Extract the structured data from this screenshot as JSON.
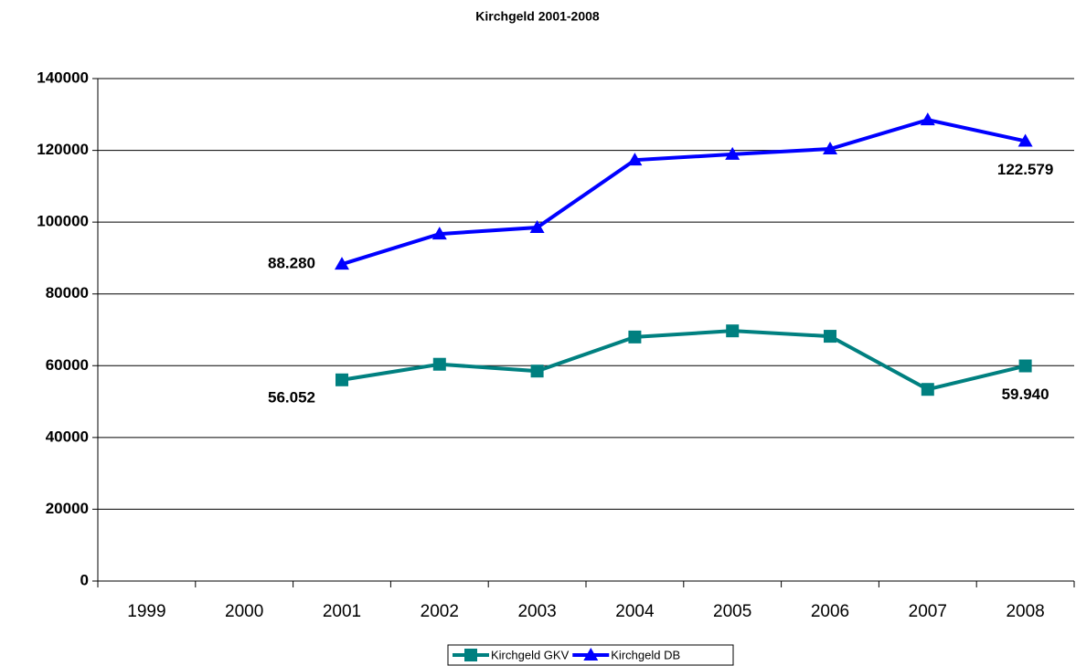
{
  "chart_data": {
    "type": "line",
    "title": "Kirchgeld 2001-2008",
    "categories": [
      "1999",
      "2000",
      "2001",
      "2002",
      "2003",
      "2004",
      "2005",
      "2006",
      "2007",
      "2008"
    ],
    "series": [
      {
        "name": "Kirchgeld GKV",
        "color": "#008080",
        "marker": "square",
        "values": [
          null,
          null,
          56052,
          60400,
          58500,
          68000,
          69700,
          68200,
          53400,
          59940
        ],
        "value_labels": [
          null,
          null,
          "56.052",
          null,
          null,
          null,
          null,
          null,
          null,
          "59.940"
        ]
      },
      {
        "name": "Kirchgeld DB",
        "color": "#0000ff",
        "marker": "triangle",
        "values": [
          null,
          null,
          88280,
          96700,
          98500,
          117300,
          118900,
          120400,
          128500,
          122579
        ],
        "value_labels": [
          null,
          null,
          "88.280",
          null,
          null,
          null,
          null,
          null,
          null,
          "122.579"
        ]
      }
    ],
    "ylim": [
      0,
      140000
    ],
    "yticks": [
      0,
      20000,
      40000,
      60000,
      80000,
      100000,
      120000,
      140000
    ],
    "grid": true,
    "legend": "bottom"
  }
}
